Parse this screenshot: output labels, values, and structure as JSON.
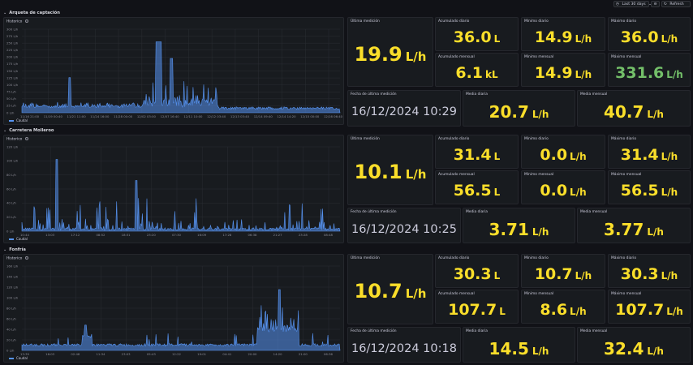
{
  "toolbar": {
    "time_range": "Last 30 days",
    "zoom_icon": "zoom-out-icon",
    "refresh": "Refresh"
  },
  "colors": {
    "bg": "#111217",
    "panel": "#181b1f",
    "value": "#fade2a",
    "value_green": "#73bf69",
    "series": "#5794f2"
  },
  "sections": [
    {
      "title": "Arqueta de captación",
      "chart_title": "Historico",
      "y_ticks": [
        "0 L/h",
        "25 L/h",
        "50 L/h",
        "75 L/h",
        "100 L/h",
        "125 L/h",
        "150 L/h",
        "175 L/h",
        "200 L/h",
        "225 L/h",
        "250 L/h",
        "275 L/h",
        "300 L/h"
      ],
      "x_ticks": [
        "11/16 21:00",
        "11/19 00:40",
        "11/21 11:00",
        "11/24 16:00",
        "11/28 00:00",
        "12/02 03:00",
        "12/07 16:40",
        "12/11 10:00",
        "12/12 03:40",
        "12/13 03:40",
        "12/14 09:40",
        "12/14 14:20",
        "12/15 00:00",
        "12/16 06:40"
      ],
      "legend": "Caudal",
      "last_label": "Última medición",
      "last_value": "19.9",
      "last_unit": "L/h",
      "acc_daily_label": "Acumulado diario",
      "acc_daily_value": "36.0",
      "acc_daily_unit": "L",
      "min_daily_label": "Mínimo diario",
      "min_daily_value": "14.9",
      "min_daily_unit": "L/h",
      "max_daily_label": "Máximo diario",
      "max_daily_value": "36.0",
      "max_daily_unit": "L/h",
      "acc_month_label": "Acumulado mensual",
      "acc_month_value": "6.1",
      "acc_month_unit": "kL",
      "min_month_label": "Mínimo mensual",
      "min_month_value": "14.9",
      "min_month_unit": "L/h",
      "max_month_label": "Máximo mensual",
      "max_month_value": "331.6",
      "max_month_unit": "L/h",
      "date_label": "Fecha de última medición",
      "date_value": "16/12/2024 10:29",
      "avg_daily_label": "Media diaria",
      "avg_daily_value": "20.7",
      "avg_daily_unit": "L/h",
      "avg_month_label": "Media mensual",
      "avg_month_value": "40.7",
      "avg_month_unit": "L/h"
    },
    {
      "title": "Carretera Molleroo",
      "chart_title": "Historico",
      "y_ticks": [
        "0 L/h",
        "20 L/h",
        "40 L/h",
        "60 L/h",
        "80 L/h",
        "100 L/h",
        "120 L/h"
      ],
      "x_ticks": [
        "10:44",
        "13:03",
        "17:12",
        "08:52",
        "18:31",
        "23:20",
        "07:30",
        "16:09",
        "17:28",
        "06:38",
        "21:27",
        "23:28",
        "08:48"
      ],
      "legend": "Caudal",
      "last_label": "Última medición",
      "last_value": "10.1",
      "last_unit": "L/h",
      "acc_daily_label": "Acumulado diario",
      "acc_daily_value": "31.4",
      "acc_daily_unit": "L",
      "min_daily_label": "Mínimo diario",
      "min_daily_value": "0.0",
      "min_daily_unit": "L/h",
      "max_daily_label": "Máximo diario",
      "max_daily_value": "31.4",
      "max_daily_unit": "L/h",
      "acc_month_label": "Acumulado mensual",
      "acc_month_value": "56.5",
      "acc_month_unit": "L",
      "min_month_label": "Mínimo mensual",
      "min_month_value": "0.0",
      "min_month_unit": "L/h",
      "max_month_label": "Máximo mensual",
      "max_month_value": "56.5",
      "max_month_unit": "L/h",
      "date_label": "Fecha de última medición",
      "date_value": "16/12/2024 10:25",
      "avg_daily_label": "Media diaria",
      "avg_daily_value": "3.71",
      "avg_daily_unit": "L/h",
      "avg_month_label": "Media mensual",
      "avg_month_value": "3.77",
      "avg_month_unit": "L/h"
    },
    {
      "title": "Fonfría",
      "chart_title": "Historico",
      "y_ticks": [
        "0 L/h",
        "20 L/h",
        "40 L/h",
        "60 L/h",
        "80 L/h",
        "100 L/h",
        "120 L/h",
        "140 L/h",
        "160 L/h"
      ],
      "x_ticks": [
        "13:39",
        "16:03",
        "02:48",
        "11:34",
        "23:03",
        "05:43",
        "12:22",
        "19:01",
        "04:41",
        "20:00",
        "14:20",
        "21:00",
        "06:36"
      ],
      "legend": "Caudal",
      "last_label": "Última medición",
      "last_value": "10.7",
      "last_unit": "L/h",
      "acc_daily_label": "Acumulado diario",
      "acc_daily_value": "30.3",
      "acc_daily_unit": "L",
      "min_daily_label": "Mínimo diario",
      "min_daily_value": "10.7",
      "min_daily_unit": "L/h",
      "max_daily_label": "Máximo diario",
      "max_daily_value": "30.3",
      "max_daily_unit": "L/h",
      "acc_month_label": "Acumulado mensual",
      "acc_month_value": "107.7",
      "acc_month_unit": "L",
      "min_month_label": "Mínimo mensual",
      "min_month_value": "8.6",
      "min_month_unit": "L/h",
      "max_month_label": "Máximo mensual",
      "max_month_value": "107.7",
      "max_month_unit": "L/h",
      "date_label": "Fecha de última medición",
      "date_value": "16/12/2024 10:18",
      "avg_daily_label": "Media diaria",
      "avg_daily_value": "14.5",
      "avg_daily_unit": "L/h",
      "avg_month_label": "Media mensual",
      "avg_month_value": "32.4",
      "avg_month_unit": "L/h"
    }
  ]
}
